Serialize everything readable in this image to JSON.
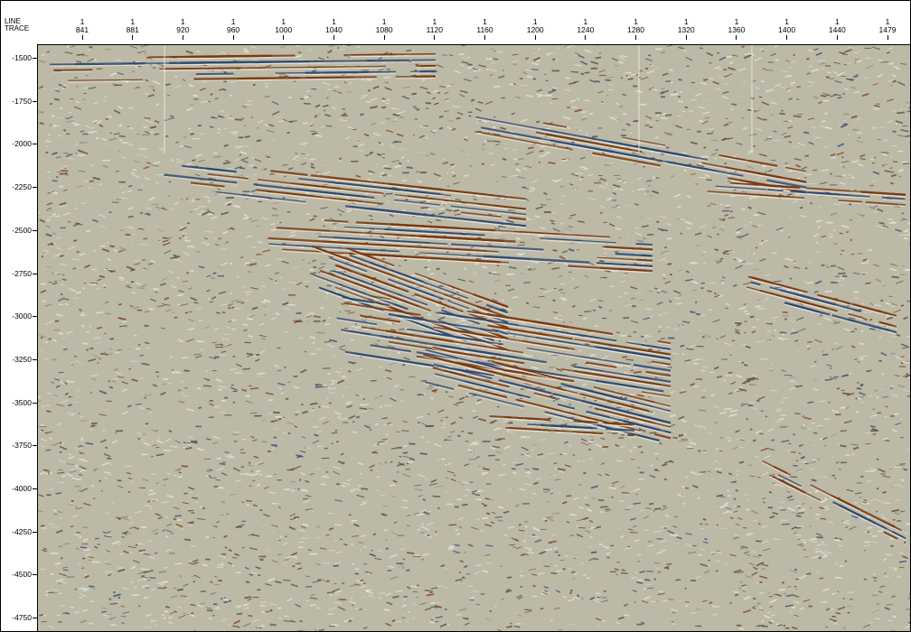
{
  "section": {
    "axis_header": {
      "line_label": "LINE",
      "trace_label": "TRACE"
    },
    "line_number": "1",
    "trace_ticks": [
      "841",
      "881",
      "920",
      "960",
      "1000",
      "1040",
      "1080",
      "1120",
      "1160",
      "1200",
      "1240",
      "1280",
      "1320",
      "1360",
      "1400",
      "1440",
      "1479"
    ],
    "depth_ticks": [
      "-1500",
      "-1750",
      "-2000",
      "-2250",
      "-2500",
      "-2750",
      "-3000",
      "-3250",
      "-3500",
      "-3750",
      "-4000",
      "-4250",
      "-4500",
      "-4750"
    ],
    "colors": {
      "background_noise": "#bcb9a7",
      "positive_amplitude": "#7a3b12",
      "negative_amplitude": "#2f4a73",
      "light_texture": "#e9e6d8",
      "dark_texture": "#4d4a3e"
    }
  }
}
